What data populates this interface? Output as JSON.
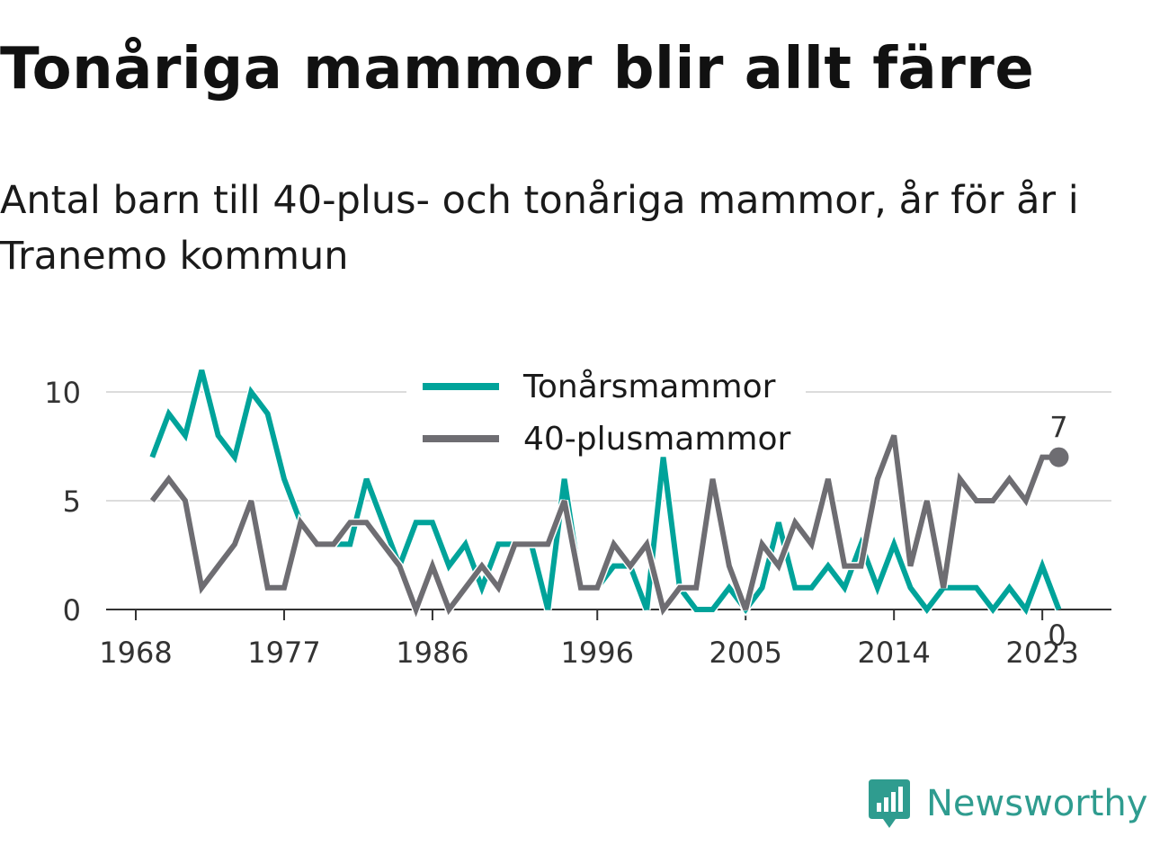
{
  "title": "Tonåriga mammor blir allt färre",
  "subtitle": "Antal barn till 40-plus- och tonåriga mammor, år för år i Tranemo kommun",
  "brand": {
    "name": "Newsworthy",
    "icon": "newsworthy-logo-icon",
    "color": "#2f9c8f"
  },
  "chart_data": {
    "type": "line",
    "x_ticks": [
      1968,
      1977,
      1986,
      1996,
      2005,
      2014,
      2023
    ],
    "y_ticks": [
      0,
      5,
      10
    ],
    "ylim": [
      0,
      11
    ],
    "grid": true,
    "legend_position": "top-center",
    "x": [
      1969,
      1970,
      1971,
      1972,
      1973,
      1974,
      1975,
      1976,
      1977,
      1978,
      1979,
      1980,
      1981,
      1982,
      1983,
      1984,
      1985,
      1986,
      1987,
      1988,
      1989,
      1990,
      1991,
      1992,
      1993,
      1994,
      1995,
      1996,
      1997,
      1998,
      1999,
      2000,
      2001,
      2002,
      2003,
      2004,
      2005,
      2006,
      2007,
      2008,
      2009,
      2010,
      2011,
      2012,
      2013,
      2014,
      2015,
      2016,
      2017,
      2018,
      2019,
      2020,
      2021,
      2022,
      2023,
      2024
    ],
    "series": [
      {
        "name": "Tonårsmammor",
        "color": "#00a39a",
        "values": [
          7,
          9,
          8,
          11,
          8,
          7,
          10,
          9,
          6,
          4,
          3,
          3,
          3,
          6,
          4,
          2,
          4,
          4,
          2,
          3,
          1,
          3,
          3,
          3,
          0,
          6,
          1,
          1,
          2,
          2,
          0,
          7,
          1,
          0,
          0,
          1,
          0,
          1,
          4,
          1,
          1,
          2,
          1,
          3,
          1,
          3,
          1,
          0,
          1,
          1,
          1,
          0,
          1,
          0,
          2,
          0
        ],
        "last_label": "0"
      },
      {
        "name": "40-plusmammor",
        "color": "#6e6d72",
        "values": [
          5,
          6,
          5,
          1,
          2,
          3,
          5,
          1,
          1,
          4,
          3,
          3,
          4,
          4,
          3,
          2,
          0,
          2,
          0,
          1,
          2,
          1,
          3,
          3,
          3,
          5,
          1,
          1,
          3,
          2,
          3,
          0,
          1,
          1,
          6,
          2,
          0,
          3,
          2,
          4,
          3,
          6,
          2,
          2,
          6,
          8,
          2,
          5,
          1,
          6,
          5,
          5,
          6,
          5,
          7,
          7
        ],
        "last_label": "7"
      }
    ]
  }
}
